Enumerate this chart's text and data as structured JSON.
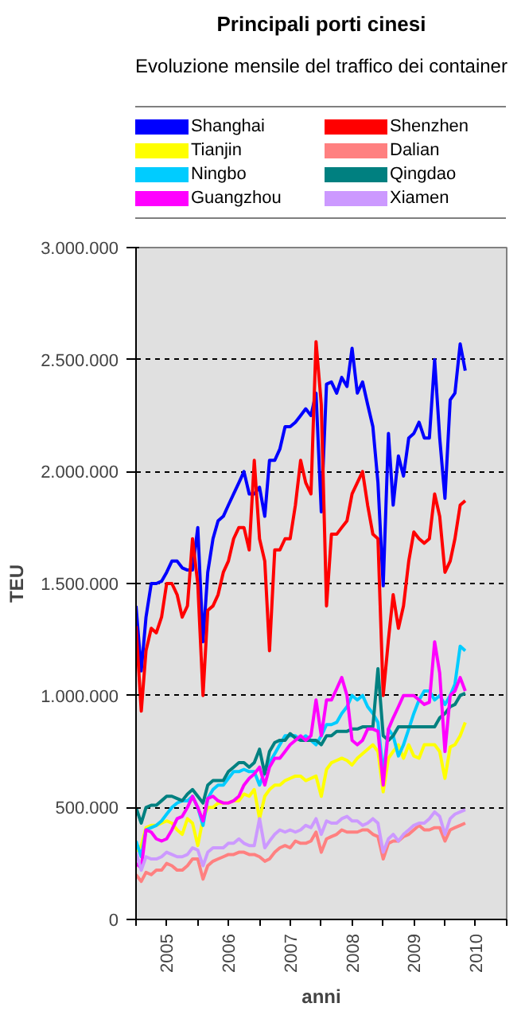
{
  "chart_data": {
    "type": "line",
    "title": "Principali porti cinesi",
    "subtitle": "Evoluzione mensile del traffico dei container",
    "xlabel": "anni",
    "ylabel": "TEU",
    "x": [
      "2005-01",
      "2005-02",
      "2005-03",
      "2005-04",
      "2005-05",
      "2005-06",
      "2005-07",
      "2005-08",
      "2005-09",
      "2005-10",
      "2005-11",
      "2005-12",
      "2006-01",
      "2006-02",
      "2006-03",
      "2006-04",
      "2006-05",
      "2006-06",
      "2006-07",
      "2006-08",
      "2006-09",
      "2006-10",
      "2006-11",
      "2006-12",
      "2007-01",
      "2007-02",
      "2007-03",
      "2007-04",
      "2007-05",
      "2007-06",
      "2007-07",
      "2007-08",
      "2007-09",
      "2007-10",
      "2007-11",
      "2007-12",
      "2008-01",
      "2008-02",
      "2008-03",
      "2008-04",
      "2008-05",
      "2008-06",
      "2008-07",
      "2008-08",
      "2008-09",
      "2008-10",
      "2008-11",
      "2008-12",
      "2009-01",
      "2009-02",
      "2009-03",
      "2009-04",
      "2009-05",
      "2009-06",
      "2009-07",
      "2009-08",
      "2009-09",
      "2009-10",
      "2009-11",
      "2009-12",
      "2010-01",
      "2010-02",
      "2010-03",
      "2010-04",
      "2010-05"
    ],
    "series": [
      {
        "name": "Shanghai",
        "color": "#0000ff",
        "values": [
          1400000,
          1110000,
          1350000,
          1500000,
          1500000,
          1510000,
          1550000,
          1600000,
          1600000,
          1570000,
          1560000,
          1560000,
          1750000,
          1240000,
          1550000,
          1700000,
          1780000,
          1800000,
          1850000,
          1900000,
          1950000,
          2000000,
          1900000,
          1900000,
          1930000,
          1800000,
          2050000,
          2050000,
          2100000,
          2200000,
          2200000,
          2220000,
          2250000,
          2280000,
          2250000,
          2350000,
          1820000,
          2390000,
          2400000,
          2350000,
          2420000,
          2380000,
          2550000,
          2350000,
          2400000,
          2300000,
          2200000,
          1950000,
          1490000,
          2170000,
          1850000,
          2070000,
          1980000,
          2150000,
          2170000,
          2220000,
          2150000,
          2150000,
          2500000,
          2150000,
          1880000,
          2320000,
          2350000,
          2570000,
          2450000
        ]
      },
      {
        "name": "Shenzhen",
        "color": "#ff0000",
        "values": [
          1310000,
          930000,
          1200000,
          1300000,
          1280000,
          1350000,
          1500000,
          1500000,
          1450000,
          1350000,
          1400000,
          1700000,
          1500000,
          1000000,
          1380000,
          1400000,
          1450000,
          1550000,
          1600000,
          1700000,
          1750000,
          1750000,
          1650000,
          2050000,
          1700000,
          1600000,
          1200000,
          1650000,
          1650000,
          1700000,
          1700000,
          1850000,
          2050000,
          1950000,
          1900000,
          2580000,
          2300000,
          1400000,
          1720000,
          1720000,
          1750000,
          1780000,
          1900000,
          1950000,
          2000000,
          1850000,
          1720000,
          1700000,
          1000000,
          1250000,
          1450000,
          1300000,
          1400000,
          1600000,
          1730000,
          1700000,
          1680000,
          1700000,
          1900000,
          1800000,
          1550000,
          1600000,
          1700000,
          1850000,
          1870000
        ]
      },
      {
        "name": "Tianjin",
        "color": "#ffff00",
        "values": [
          300000,
          330000,
          410000,
          420000,
          420000,
          430000,
          440000,
          430000,
          400000,
          380000,
          450000,
          430000,
          330000,
          450000,
          500000,
          500000,
          520000,
          520000,
          520000,
          530000,
          530000,
          560000,
          550000,
          580000,
          450000,
          550000,
          580000,
          600000,
          600000,
          620000,
          630000,
          640000,
          640000,
          620000,
          630000,
          640000,
          550000,
          670000,
          700000,
          710000,
          720000,
          710000,
          690000,
          720000,
          740000,
          760000,
          780000,
          750000,
          570000,
          720000,
          750000,
          780000,
          720000,
          780000,
          730000,
          720000,
          780000,
          780000,
          780000,
          750000,
          630000,
          770000,
          780000,
          820000,
          880000
        ]
      },
      {
        "name": "Dalian",
        "color": "#ff8080",
        "values": [
          200000,
          170000,
          210000,
          200000,
          220000,
          220000,
          250000,
          240000,
          220000,
          220000,
          240000,
          270000,
          270000,
          180000,
          240000,
          260000,
          270000,
          280000,
          290000,
          290000,
          300000,
          300000,
          290000,
          290000,
          280000,
          260000,
          270000,
          300000,
          320000,
          330000,
          320000,
          350000,
          340000,
          340000,
          350000,
          390000,
          300000,
          360000,
          370000,
          380000,
          400000,
          390000,
          390000,
          390000,
          400000,
          400000,
          380000,
          370000,
          270000,
          340000,
          350000,
          350000,
          370000,
          380000,
          400000,
          420000,
          400000,
          400000,
          410000,
          410000,
          350000,
          400000,
          410000,
          420000,
          430000
        ]
      },
      {
        "name": "Ningbo",
        "color": "#00ccff",
        "values": [
          350000,
          280000,
          400000,
          410000,
          420000,
          440000,
          470000,
          500000,
          520000,
          530000,
          530000,
          550000,
          500000,
          420000,
          540000,
          580000,
          600000,
          600000,
          630000,
          660000,
          660000,
          670000,
          660000,
          660000,
          600000,
          660000,
          700000,
          740000,
          780000,
          820000,
          820000,
          820000,
          800000,
          820000,
          800000,
          780000,
          820000,
          870000,
          870000,
          880000,
          920000,
          950000,
          1000000,
          980000,
          1000000,
          950000,
          920000,
          880000,
          650000,
          850000,
          820000,
          730000,
          780000,
          850000,
          920000,
          980000,
          1020000,
          1020000,
          980000,
          1000000,
          960000,
          1000000,
          1050000,
          1220000,
          1200000
        ]
      },
      {
        "name": "Qingdao",
        "color": "#008080",
        "values": [
          500000,
          430000,
          500000,
          510000,
          510000,
          530000,
          550000,
          550000,
          540000,
          530000,
          560000,
          580000,
          550000,
          520000,
          600000,
          620000,
          620000,
          620000,
          660000,
          680000,
          700000,
          700000,
          680000,
          700000,
          760000,
          650000,
          750000,
          790000,
          800000,
          800000,
          830000,
          810000,
          800000,
          800000,
          800000,
          800000,
          780000,
          820000,
          820000,
          840000,
          840000,
          840000,
          850000,
          850000,
          860000,
          860000,
          860000,
          1120000,
          820000,
          800000,
          820000,
          860000,
          860000,
          860000,
          860000,
          860000,
          860000,
          860000,
          860000,
          900000,
          920000,
          950000,
          960000,
          1000000,
          1010000
        ]
      },
      {
        "name": "Guangzhou",
        "color": "#ff00ff",
        "values": [
          250000,
          230000,
          400000,
          390000,
          360000,
          350000,
          360000,
          400000,
          450000,
          460000,
          500000,
          550000,
          500000,
          440000,
          540000,
          550000,
          530000,
          520000,
          520000,
          530000,
          550000,
          600000,
          630000,
          650000,
          680000,
          600000,
          680000,
          720000,
          720000,
          750000,
          780000,
          800000,
          820000,
          800000,
          820000,
          980000,
          820000,
          980000,
          980000,
          1030000,
          1080000,
          1000000,
          800000,
          780000,
          800000,
          850000,
          850000,
          840000,
          600000,
          850000,
          900000,
          950000,
          1000000,
          1000000,
          1000000,
          980000,
          960000,
          970000,
          1240000,
          1100000,
          750000,
          1000000,
          1020000,
          1080000,
          1020000
        ]
      },
      {
        "name": "Xiamen",
        "color": "#cc99ff",
        "values": [
          300000,
          220000,
          280000,
          270000,
          270000,
          280000,
          300000,
          290000,
          280000,
          280000,
          290000,
          320000,
          310000,
          240000,
          300000,
          320000,
          320000,
          320000,
          340000,
          340000,
          360000,
          340000,
          330000,
          330000,
          450000,
          320000,
          350000,
          380000,
          400000,
          390000,
          400000,
          390000,
          400000,
          420000,
          410000,
          450000,
          380000,
          440000,
          430000,
          430000,
          450000,
          460000,
          440000,
          440000,
          420000,
          430000,
          450000,
          430000,
          300000,
          360000,
          380000,
          350000,
          380000,
          400000,
          420000,
          430000,
          430000,
          450000,
          480000,
          460000,
          380000,
          450000,
          470000,
          480000,
          490000
        ]
      }
    ],
    "xlim": [
      "2005-01-01",
      "2011-01-01"
    ],
    "xticks": [
      {
        "value": "2005-01-01",
        "label": null
      },
      {
        "value": "2005-07-01",
        "label": "2005"
      },
      {
        "value": "2006-01-01",
        "label": null
      },
      {
        "value": "2006-07-01",
        "label": "2006"
      },
      {
        "value": "2007-01-01",
        "label": null
      },
      {
        "value": "2007-07-01",
        "label": "2007"
      },
      {
        "value": "2008-01-01",
        "label": null
      },
      {
        "value": "2008-07-01",
        "label": "2008"
      },
      {
        "value": "2009-01-01",
        "label": null
      },
      {
        "value": "2009-07-01",
        "label": "2009"
      },
      {
        "value": "2010-01-01",
        "label": null
      },
      {
        "value": "2010-07-01",
        "label": "2010"
      },
      {
        "value": "2011-01-01",
        "label": null
      }
    ],
    "ylim": [
      0,
      3000000
    ],
    "yticks": [
      0,
      {
        "value": 500000,
        "label": "500.000"
      },
      {
        "value": 1000000,
        "label": "1.000.000"
      },
      {
        "value": 1500000,
        "label": "1.500.000"
      },
      {
        "value": 2000000,
        "label": "2.000.000"
      },
      {
        "value": 2500000,
        "label": "2.500.000"
      },
      {
        "value": 3000000,
        "label": "3.000.000"
      }
    ],
    "grid": "y",
    "legend": "top"
  }
}
